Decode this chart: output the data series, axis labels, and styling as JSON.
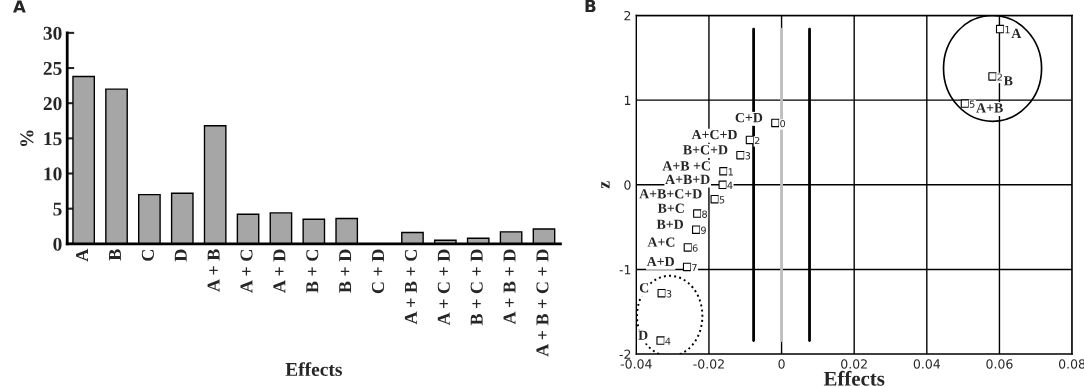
{
  "chart_data": [
    {
      "type": "bar",
      "title": "A",
      "xlabel": "Effects",
      "ylabel": "%",
      "categories": [
        "A",
        "B",
        "C",
        "D",
        "A + B",
        "A + C",
        "A + D",
        "B + C",
        "B + D",
        "C + D",
        "A + B + C",
        "A + C + D",
        "B + C + D",
        "A + B + D",
        "A + B + C + D"
      ],
      "values": [
        23.8,
        22.0,
        7.0,
        7.2,
        16.8,
        4.2,
        4.4,
        3.5,
        3.6,
        0,
        1.6,
        0.5,
        0.8,
        1.7,
        2.1
      ],
      "color": "#a6a6a6",
      "ylim": [
        0,
        30
      ],
      "yticks": [
        0,
        5,
        10,
        15,
        20,
        25,
        30
      ],
      "grid": false
    },
    {
      "type": "scatter",
      "title": "B",
      "xlabel": "Effects",
      "ylabel": "z",
      "marker": "square",
      "grid": true,
      "color": "#ffffff",
      "x": [
        0.0602,
        0.0581,
        0.0505,
        -0.0017,
        -0.0087,
        -0.0113,
        -0.016,
        -0.0162,
        -0.0184,
        -0.0232,
        -0.0235,
        -0.0258,
        -0.026,
        -0.033,
        -0.0333
      ],
      "values": [
        1.84,
        1.28,
        0.96,
        0.73,
        0.53,
        0.35,
        0.16,
        0.0,
        -0.17,
        -0.34,
        -0.53,
        -0.74,
        -0.97,
        -1.28,
        -1.84
      ],
      "xlim": [
        -0.04,
        0.08
      ],
      "xticks": [
        -0.04,
        -0.02,
        0,
        0.02,
        0.04,
        0.06,
        0.08
      ],
      "ylim": [
        -2,
        2
      ],
      "yticks": [
        -2,
        -1,
        0,
        1,
        2
      ],
      "ref_lines": [
        {
          "axis": "x",
          "value": -0.0077,
          "color": "#000000"
        },
        {
          "axis": "x",
          "value": 0,
          "color": "#bfbfbf"
        },
        {
          "axis": "x",
          "value": 0.0077,
          "color": "#000000"
        }
      ],
      "annotations": [
        {
          "text": "A",
          "x": 0.0602,
          "y": 1.84
        },
        {
          "text": "B",
          "x": 0.0581,
          "y": 1.28
        },
        {
          "text": "A+B",
          "x": 0.0505,
          "y": 0.96
        },
        {
          "text": "C+D",
          "x": -0.0017,
          "y": 0.73
        },
        {
          "text": "A+C+D",
          "x": -0.0087,
          "y": 0.53
        },
        {
          "text": "B+C+D",
          "x": -0.0113,
          "y": 0.35
        },
        {
          "text": "A+B +C",
          "x": -0.016,
          "y": 0.16
        },
        {
          "text": "A+B+D",
          "x": -0.0162,
          "y": 0.0
        },
        {
          "text": "A+B+C+D",
          "x": -0.0184,
          "y": -0.17
        },
        {
          "text": "B+C",
          "x": -0.0232,
          "y": -0.34
        },
        {
          "text": "B+D",
          "x": -0.0235,
          "y": -0.53
        },
        {
          "text": "A+C",
          "x": -0.0258,
          "y": -0.74
        },
        {
          "text": "A+D",
          "x": -0.026,
          "y": -0.97
        },
        {
          "text": "C",
          "x": -0.033,
          "y": -1.28
        },
        {
          "text": "D",
          "x": -0.0333,
          "y": -1.84
        },
        {
          "text": "1",
          "x": 0.0602,
          "y": 1.84
        },
        {
          "text": "2",
          "x": 0.0581,
          "y": 1.28
        },
        {
          "text": "5",
          "x": 0.0505,
          "y": 0.96
        },
        {
          "text": "0",
          "x": -0.0017,
          "y": 0.73
        },
        {
          "text": "2",
          "x": -0.0087,
          "y": 0.53
        },
        {
          "text": "3",
          "x": -0.0113,
          "y": 0.35
        },
        {
          "text": "1",
          "x": -0.016,
          "y": 0.16
        },
        {
          "text": "4",
          "x": -0.0162,
          "y": 0.0
        },
        {
          "text": "5",
          "x": -0.0184,
          "y": -0.17
        },
        {
          "text": "8",
          "x": -0.0232,
          "y": -0.34
        },
        {
          "text": "9",
          "x": -0.0235,
          "y": -0.53
        },
        {
          "text": "6",
          "x": -0.0258,
          "y": -0.74
        },
        {
          "text": "7",
          "x": -0.026,
          "y": -0.97
        },
        {
          "text": "3",
          "x": -0.033,
          "y": -1.28
        },
        {
          "text": "4",
          "x": -0.0333,
          "y": -1.84
        }
      ]
    }
  ]
}
